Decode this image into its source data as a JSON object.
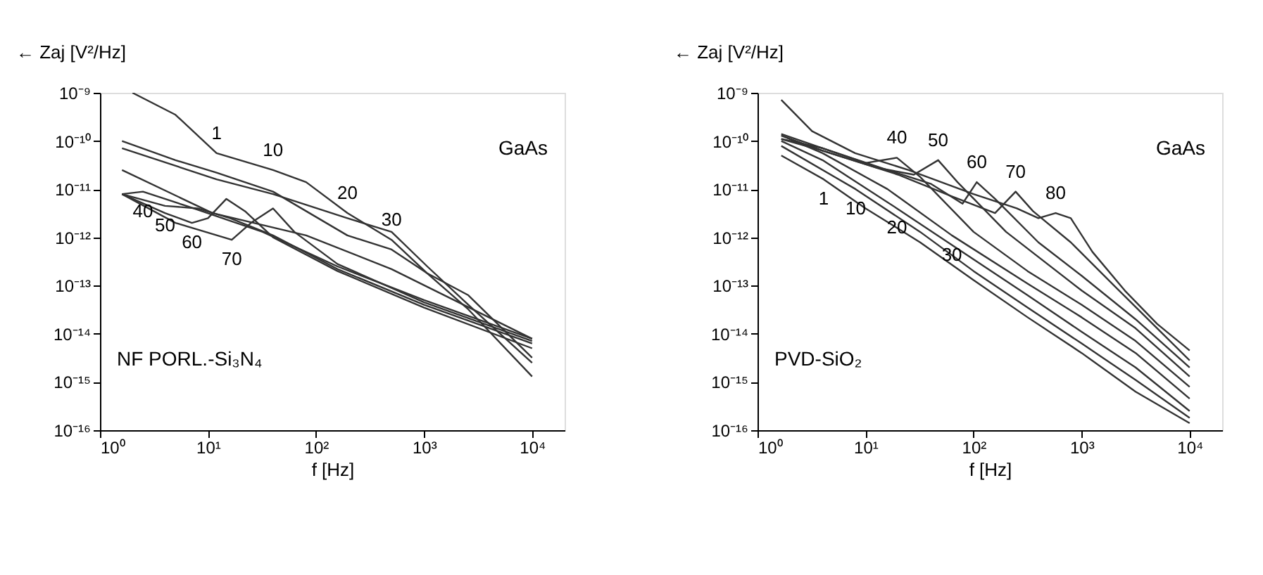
{
  "chart_data": [
    {
      "type": "line",
      "xlabel": "f [Hz]",
      "ylabel": "← Zaj [V²/Hz]",
      "log": "xy",
      "grid": false,
      "legend": false,
      "xlim": [
        1,
        20000
      ],
      "xticks": [
        {
          "value": 1,
          "label": "10⁰"
        },
        {
          "value": 10,
          "label": "10¹"
        },
        {
          "value": 100,
          "label": "10²"
        },
        {
          "value": 1000,
          "label": "10³"
        },
        {
          "value": 10000,
          "label": "10⁴"
        }
      ],
      "ylim": [
        1e-16,
        1e-09
      ],
      "yticks": [
        {
          "value": 1e-16,
          "label": "10⁻¹⁶"
        },
        {
          "value": 1e-15,
          "label": "10⁻¹⁵"
        },
        {
          "value": 1e-14,
          "label": "10⁻¹⁴"
        },
        {
          "value": 1e-13,
          "label": "10⁻¹³"
        },
        {
          "value": 1e-12,
          "label": "10⁻¹²"
        },
        {
          "value": 1e-11,
          "label": "10⁻¹¹"
        },
        {
          "value": 1e-10,
          "label": "10⁻¹⁰"
        },
        {
          "value": 1e-09,
          "label": "10⁻⁹"
        }
      ],
      "series": [
        {
          "color": "#333333",
          "x": [
            2,
            5,
            12,
            40,
            81,
            195,
            500,
            1070,
            2570,
            10000
          ],
          "values": [
            1e-09,
            3.5e-10,
            5.6e-11,
            2.5e-11,
            1.4e-11,
            3.2e-12,
            8.9e-13,
            1.8e-13,
            3.2e-14,
            1.3e-15
          ]
        },
        {
          "color": "#333333",
          "x": [
            1.6,
            5,
            12,
            40,
            195,
            500,
            1070,
            2570,
            10000
          ],
          "values": [
            1e-10,
            4e-11,
            2.2e-11,
            8.9e-12,
            1.1e-12,
            5.6e-13,
            1.8e-13,
            6.3e-14,
            3.2e-15
          ]
        },
        {
          "color": "#333333",
          "x": [
            1.6,
            12,
            40,
            195,
            500,
            1070,
            2570,
            10000
          ],
          "values": [
            7.1e-11,
            1.6e-11,
            7.9e-12,
            2.5e-12,
            1.3e-12,
            2.5e-13,
            4e-14,
            2.5e-15
          ]
        },
        {
          "color": "#333333",
          "x": [
            1.6,
            11,
            81,
            500,
            10000
          ],
          "values": [
            2.5e-11,
            3.2e-12,
            1.1e-12,
            2.2e-13,
            7.9e-15
          ]
        },
        {
          "color": "#333333",
          "x": [
            1.6,
            2.5,
            6.3,
            32,
            158,
            1000,
            10000
          ],
          "values": [
            7.9e-12,
            8.9e-12,
            4.5e-12,
            1.3e-12,
            2.5e-13,
            5e-14,
            7.9e-15
          ]
        },
        {
          "color": "#333333",
          "x": [
            1.6,
            4,
            8,
            16,
            40,
            158,
            1000,
            10000
          ],
          "values": [
            7.9e-12,
            4.5e-12,
            4e-12,
            2.5e-12,
            1.1e-12,
            2.2e-13,
            4e-14,
            6.3e-15
          ]
        },
        {
          "color": "#333333",
          "x": [
            1.6,
            4,
            7.1,
            10,
            14.8,
            22,
            40,
            158,
            1000,
            10000
          ],
          "values": [
            7.9e-12,
            3.2e-12,
            2e-12,
            2.5e-12,
            6.3e-12,
            3.5e-12,
            1e-12,
            2e-13,
            3.5e-14,
            5e-15
          ]
        },
        {
          "color": "#333333",
          "x": [
            1.6,
            5,
            16.6,
            25,
            40,
            63,
            158,
            1000,
            10000
          ],
          "values": [
            7.9e-12,
            2e-12,
            8.9e-13,
            2e-12,
            4e-12,
            1.3e-12,
            2.8e-13,
            4.5e-14,
            7.1e-15
          ]
        }
      ],
      "annotations": [
        {
          "text": "1",
          "x": 12,
          "y": 5.6e-11
        },
        {
          "text": "10",
          "x": 40,
          "y": 2.5e-11
        },
        {
          "text": "20",
          "x": 195,
          "y": 3.2e-12
        },
        {
          "text": "30",
          "x": 500,
          "y": 8.9e-13
        },
        {
          "text": "40",
          "x": 2.5,
          "y": 8.9e-12
        },
        {
          "text": "50",
          "x": 4,
          "y": 4.5e-12
        },
        {
          "text": "60",
          "x": 7.1,
          "y": 2e-12
        },
        {
          "text": "70",
          "x": 16.6,
          "y": 8.9e-13
        },
        "GaAs",
        "NF PORL.-Si₃N₄"
      ]
    },
    {
      "type": "line",
      "xlabel": "f [Hz]",
      "ylabel": "← Zaj [V²/Hz]",
      "log": "xy",
      "grid": false,
      "legend": false,
      "xlim": [
        1,
        20000
      ],
      "xticks": [
        {
          "value": 1,
          "label": "10⁰"
        },
        {
          "value": 10,
          "label": "10¹"
        },
        {
          "value": 100,
          "label": "10²"
        },
        {
          "value": 1000,
          "label": "10³"
        },
        {
          "value": 10000,
          "label": "10⁴"
        }
      ],
      "ylim": [
        1e-16,
        1e-09
      ],
      "yticks": [
        {
          "value": 1e-16,
          "label": "10⁻¹⁶"
        },
        {
          "value": 1e-15,
          "label": "10⁻¹⁵"
        },
        {
          "value": 1e-14,
          "label": "10⁻¹⁴"
        },
        {
          "value": 1e-13,
          "label": "10⁻¹³"
        },
        {
          "value": 1e-12,
          "label": "10⁻¹²"
        },
        {
          "value": 1e-11,
          "label": "10⁻¹¹"
        },
        {
          "value": 1e-10,
          "label": "10⁻¹⁰"
        },
        {
          "value": 1e-09,
          "label": "10⁻⁹"
        }
      ],
      "series": [
        {
          "color": "#333333",
          "x": [
            1.66,
            4.1,
            10,
            32,
            100,
            316,
            1000,
            3160,
            10000
          ],
          "values": [
            5e-11,
            1.6e-11,
            4e-12,
            7.9e-13,
            1.3e-13,
            2.2e-14,
            4e-15,
            6.3e-16,
            1.4e-16
          ]
        },
        {
          "color": "#333333",
          "x": [
            1.66,
            8.1,
            32,
            100,
            316,
            1000,
            3160,
            10000
          ],
          "values": [
            7.9e-11,
            1e-11,
            1.3e-12,
            2e-13,
            3.5e-14,
            6.3e-15,
            1.1e-15,
            1.8e-16
          ]
        },
        {
          "color": "#333333",
          "x": [
            1.66,
            4,
            19.5,
            100,
            316,
            1000,
            3160,
            10000
          ],
          "values": [
            1e-10,
            4e-11,
            4e-12,
            3.5e-13,
            6.3e-14,
            1.1e-14,
            2e-15,
            2.5e-16
          ]
        },
        {
          "color": "#333333",
          "x": [
            1.66,
            4,
            16,
            63,
            316,
            1000,
            3160,
            10000
          ],
          "values": [
            1.3e-10,
            5.6e-11,
            1e-11,
            1.1e-12,
            1.1e-13,
            2.2e-14,
            4e-15,
            4.5e-16
          ]
        },
        {
          "color": "#333333",
          "x": [
            1.66,
            4,
            10,
            19.5,
            32,
            100,
            316,
            1000,
            3160,
            10000
          ],
          "values": [
            1.4e-10,
            7.1e-11,
            3.5e-11,
            4.5e-11,
            1.8e-11,
            1.3e-12,
            2e-13,
            4e-14,
            7.1e-15,
            7.9e-16
          ]
        },
        {
          "color": "#333333",
          "x": [
            1.66,
            4,
            12.6,
            28,
            47,
            71,
            200,
            1000,
            3160,
            10000
          ],
          "values": [
            1.3e-10,
            6.3e-11,
            2.8e-11,
            2e-11,
            4e-11,
            1.4e-11,
            1.3e-12,
            7.9e-14,
            1.3e-14,
            1.3e-15
          ]
        },
        {
          "color": "#333333",
          "x": [
            1.66,
            4,
            16,
            40,
            79,
            107,
            158,
            398,
            1000,
            3160,
            10000
          ],
          "values": [
            1.1e-10,
            7.1e-11,
            2.5e-11,
            1.3e-11,
            5e-12,
            1.4e-11,
            6.3e-12,
            7.9e-13,
            1.6e-13,
            2e-14,
            2e-15
          ]
        },
        {
          "color": "#333333",
          "x": [
            1.66,
            4,
            20,
            63,
            158,
            245,
            355,
            794,
            2000,
            5010,
            10000
          ],
          "values": [
            1.1e-10,
            6.3e-11,
            2e-11,
            7.1e-12,
            3.2e-12,
            8.9e-12,
            3.5e-12,
            7.9e-13,
            1e-13,
            1.3e-14,
            2.8e-15
          ]
        },
        {
          "color": "#333333",
          "x": [
            1.66,
            3.2,
            8,
            25,
            100,
            251,
            398,
            575,
            794,
            1260,
            2510,
            5010,
            10000
          ],
          "values": [
            7.1e-10,
            1.6e-10,
            5.6e-11,
            2.5e-11,
            7.9e-12,
            4e-12,
            2.5e-12,
            3.2e-12,
            2.5e-12,
            5e-13,
            7.9e-14,
            1.6e-14,
            4.5e-15
          ]
        }
      ],
      "annotations": [
        {
          "text": "1",
          "x": 4.1,
          "y": 1.6e-11
        },
        {
          "text": "10",
          "x": 8.1,
          "y": 1e-11
        },
        {
          "text": "20",
          "x": 19.5,
          "y": 4e-12
        },
        {
          "text": "30",
          "x": 63,
          "y": 1.1e-12
        },
        {
          "text": "40",
          "x": 19.5,
          "y": 4.5e-11
        },
        {
          "text": "50",
          "x": 47,
          "y": 4e-11
        },
        {
          "text": "60",
          "x": 107,
          "y": 1.4e-11
        },
        {
          "text": "70",
          "x": 245,
          "y": 8.9e-12
        },
        {
          "text": "80",
          "x": 575,
          "y": 3.2e-12
        },
        "GaAs",
        "PVD-SiO₂"
      ]
    }
  ]
}
